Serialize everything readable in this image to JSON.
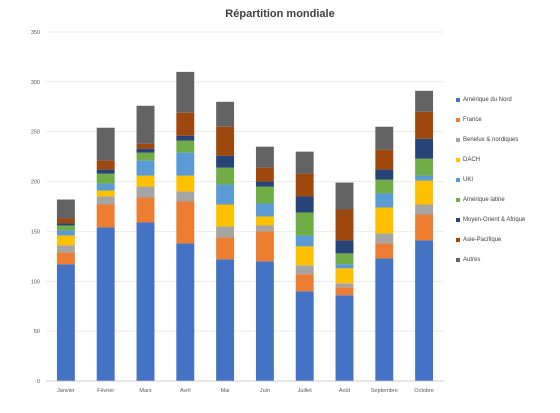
{
  "chart_data": {
    "type": "bar",
    "stacked": true,
    "title": "Répartition mondiale",
    "xlabel": "",
    "ylabel": "",
    "ylim": [
      0,
      350
    ],
    "yticks": [
      0,
      50,
      100,
      150,
      200,
      250,
      300,
      350
    ],
    "grid": true,
    "legend_position": "right",
    "categories": [
      "Janvier",
      "Février",
      "Mars",
      "Avril",
      "Mai",
      "Juin",
      "Juillet",
      "Août",
      "Septembre",
      "Octobre"
    ],
    "series": [
      {
        "name": "Amérique du Nord",
        "color": "#4472c4",
        "values": [
          117,
          154,
          159,
          138,
          122,
          120,
          90,
          86,
          123,
          141
        ]
      },
      {
        "name": "France",
        "color": "#ed7d31",
        "values": [
          12,
          23,
          25,
          42,
          22,
          30,
          17,
          8,
          15,
          26
        ]
      },
      {
        "name": "Benelux & nordiques",
        "color": "#a5a5a5",
        "values": [
          7,
          8,
          11,
          10,
          11,
          6,
          9,
          4,
          10,
          10
        ]
      },
      {
        "name": "DACH",
        "color": "#ffc000",
        "values": [
          10,
          6,
          11,
          16,
          22,
          9,
          19,
          15,
          26,
          24
        ]
      },
      {
        "name": "UKI",
        "color": "#5b9bd5",
        "values": [
          5,
          7,
          15,
          23,
          20,
          13,
          11,
          4,
          14,
          5
        ]
      },
      {
        "name": "Amérique latine",
        "color": "#70ad47",
        "values": [
          5,
          10,
          8,
          12,
          17,
          17,
          23,
          11,
          14,
          17
        ]
      },
      {
        "name": "Moyen-Orient & Afrique",
        "color": "#264478",
        "values": [
          2,
          4,
          4,
          5,
          12,
          5,
          16,
          13,
          10,
          20
        ]
      },
      {
        "name": "Asie-Pacifique",
        "color": "#9e480e",
        "values": [
          5,
          9,
          5,
          23,
          29,
          14,
          23,
          31,
          20,
          27
        ]
      },
      {
        "name": "Autres",
        "color": "#636363",
        "values": [
          19,
          33,
          38,
          41,
          25,
          21,
          22,
          27,
          23,
          21
        ]
      }
    ]
  }
}
